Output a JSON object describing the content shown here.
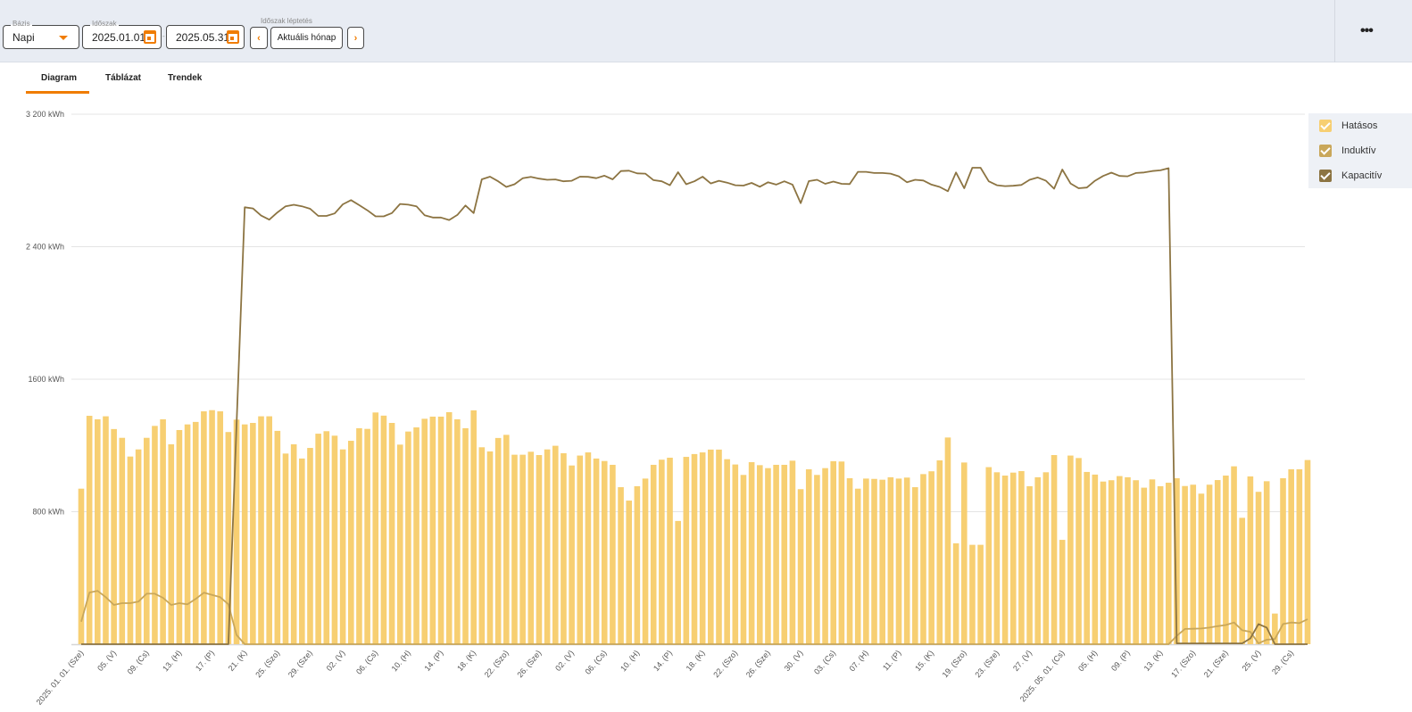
{
  "header": {
    "basis_label": "Bázis",
    "basis_value": "Napi",
    "period_label": "Időszak",
    "date_from": "2025.01.01",
    "date_separator": "-",
    "date_to": "2025.05.31",
    "step_label": "Időszak léptetés",
    "prev_icon": "chevron-left-icon",
    "prev_glyph": "‹",
    "current_month": "Aktuális hónap",
    "next_icon": "chevron-right-icon",
    "next_glyph": "›",
    "more_glyph": "•••",
    "accent_color": "#f07c00"
  },
  "tabs": [
    {
      "label": "Diagram",
      "active": true
    },
    {
      "label": "Táblázat",
      "active": false
    },
    {
      "label": "Trendek",
      "active": false
    }
  ],
  "legend": [
    {
      "label": "Hatásos",
      "color": "#f7cf72",
      "checked": true
    },
    {
      "label": "Induktív",
      "color": "#c9a75a",
      "checked": true
    },
    {
      "label": "Kapacitív",
      "color": "#8c7442",
      "checked": true
    }
  ],
  "chart_data": {
    "type": "bar+line",
    "unit": "kWh",
    "ylim": [
      0,
      3200
    ],
    "yticks": [
      800,
      1600,
      2400,
      3200
    ],
    "ytick_labels": [
      "800 kWh",
      "1600 kWh",
      "2 400 kWh",
      "3 200 kWh"
    ],
    "grid": true,
    "legend_position": "right",
    "dates": [
      "2025-01-01",
      "2025-01-02",
      "2025-01-03",
      "2025-01-04",
      "2025-01-05",
      "2025-01-06",
      "2025-01-07",
      "2025-01-08",
      "2025-01-09",
      "2025-01-10",
      "2025-01-11",
      "2025-01-12",
      "2025-01-13",
      "2025-01-14",
      "2025-01-15",
      "2025-01-16",
      "2025-01-17",
      "2025-01-18",
      "2025-01-19",
      "2025-01-20",
      "2025-01-21",
      "2025-01-22",
      "2025-01-23",
      "2025-01-24",
      "2025-01-25",
      "2025-01-26",
      "2025-01-27",
      "2025-01-28",
      "2025-01-29",
      "2025-01-30",
      "2025-01-31",
      "2025-02-01",
      "2025-02-02",
      "2025-02-03",
      "2025-02-04",
      "2025-02-05",
      "2025-02-06",
      "2025-02-07",
      "2025-02-08",
      "2025-02-09",
      "2025-02-10",
      "2025-02-11",
      "2025-02-12",
      "2025-02-13",
      "2025-02-14",
      "2025-02-15",
      "2025-02-16",
      "2025-02-17",
      "2025-02-18",
      "2025-02-19",
      "2025-02-20",
      "2025-02-21",
      "2025-02-22",
      "2025-02-23",
      "2025-02-24",
      "2025-02-25",
      "2025-02-26",
      "2025-02-27",
      "2025-02-28",
      "2025-03-01",
      "2025-03-02",
      "2025-03-03",
      "2025-03-04",
      "2025-03-05",
      "2025-03-06",
      "2025-03-07",
      "2025-03-08",
      "2025-03-09",
      "2025-03-10",
      "2025-03-11",
      "2025-03-12",
      "2025-03-13",
      "2025-03-14",
      "2025-03-15",
      "2025-03-16",
      "2025-03-17",
      "2025-03-18",
      "2025-03-19",
      "2025-03-20",
      "2025-03-21",
      "2025-03-22",
      "2025-03-23",
      "2025-03-24",
      "2025-03-25",
      "2025-03-26",
      "2025-03-27",
      "2025-03-28",
      "2025-03-29",
      "2025-03-30",
      "2025-03-31",
      "2025-04-01",
      "2025-04-02",
      "2025-04-03",
      "2025-04-04",
      "2025-04-05",
      "2025-04-06",
      "2025-04-07",
      "2025-04-08",
      "2025-04-09",
      "2025-04-10",
      "2025-04-11",
      "2025-04-12",
      "2025-04-13",
      "2025-04-14",
      "2025-04-15",
      "2025-04-16",
      "2025-04-17",
      "2025-04-18",
      "2025-04-19",
      "2025-04-20",
      "2025-04-21",
      "2025-04-22",
      "2025-04-23",
      "2025-04-24",
      "2025-04-25",
      "2025-04-26",
      "2025-04-27",
      "2025-04-28",
      "2025-04-29",
      "2025-04-30",
      "2025-05-01",
      "2025-05-02",
      "2025-05-03",
      "2025-05-04",
      "2025-05-05",
      "2025-05-06",
      "2025-05-07",
      "2025-05-08",
      "2025-05-09",
      "2025-05-10",
      "2025-05-11",
      "2025-05-12",
      "2025-05-13",
      "2025-05-14",
      "2025-05-15",
      "2025-05-16",
      "2025-05-17",
      "2025-05-18",
      "2025-05-19",
      "2025-05-20",
      "2025-05-21",
      "2025-05-22",
      "2025-05-23",
      "2025-05-24",
      "2025-05-25",
      "2025-05-26",
      "2025-05-27",
      "2025-05-28",
      "2025-05-29",
      "2025-05-30",
      "2025-05-31"
    ],
    "xtick_labels": [
      {
        "date": "2025-01-01",
        "label": "2025. 01. 01. (Sze)"
      },
      {
        "date": "2025-01-05",
        "label": "05. (V)"
      },
      {
        "date": "2025-01-09",
        "label": "09. (Cs)"
      },
      {
        "date": "2025-01-13",
        "label": "13. (H)"
      },
      {
        "date": "2025-01-17",
        "label": "17. (P)"
      },
      {
        "date": "2025-01-21",
        "label": "21. (K)"
      },
      {
        "date": "2025-01-25",
        "label": "25. (Szo)"
      },
      {
        "date": "2025-01-29",
        "label": "29. (Sze)"
      },
      {
        "date": "2025-02-02",
        "label": "02. (V)"
      },
      {
        "date": "2025-02-06",
        "label": "06. (Cs)"
      },
      {
        "date": "2025-02-10",
        "label": "10. (H)"
      },
      {
        "date": "2025-02-14",
        "label": "14. (P)"
      },
      {
        "date": "2025-02-18",
        "label": "18. (K)"
      },
      {
        "date": "2025-02-22",
        "label": "22. (Szo)"
      },
      {
        "date": "2025-02-26",
        "label": "26. (Sze)"
      },
      {
        "date": "2025-03-02",
        "label": "02. (V)"
      },
      {
        "date": "2025-03-06",
        "label": "06. (Cs)"
      },
      {
        "date": "2025-03-10",
        "label": "10. (H)"
      },
      {
        "date": "2025-03-14",
        "label": "14. (P)"
      },
      {
        "date": "2025-03-18",
        "label": "18. (K)"
      },
      {
        "date": "2025-03-22",
        "label": "22. (Szo)"
      },
      {
        "date": "2025-03-26",
        "label": "26. (Sze)"
      },
      {
        "date": "2025-03-30",
        "label": "30. (V)"
      },
      {
        "date": "2025-04-03",
        "label": "03. (Cs)"
      },
      {
        "date": "2025-04-07",
        "label": "07. (H)"
      },
      {
        "date": "2025-04-11",
        "label": "11. (P)"
      },
      {
        "date": "2025-04-15",
        "label": "15. (K)"
      },
      {
        "date": "2025-04-19",
        "label": "19. (Szo)"
      },
      {
        "date": "2025-04-23",
        "label": "23. (Sze)"
      },
      {
        "date": "2025-04-27",
        "label": "27. (V)"
      },
      {
        "date": "2025-05-01",
        "label": "2025. 05. 01. (Cs)"
      },
      {
        "date": "2025-05-05",
        "label": "05. (H)"
      },
      {
        "date": "2025-05-09",
        "label": "09. (P)"
      },
      {
        "date": "2025-05-13",
        "label": "13. (K)"
      },
      {
        "date": "2025-05-17",
        "label": "17. (Szo)"
      },
      {
        "date": "2025-05-21",
        "label": "21. (Sze)"
      },
      {
        "date": "2025-05-25",
        "label": "25. (V)"
      },
      {
        "date": "2025-05-29",
        "label": "29. (Cs)"
      }
    ],
    "series": [
      {
        "name": "Hatásos",
        "kind": "bar",
        "color": "#f7cf72",
        "values": [
          939,
          1379,
          1358,
          1376,
          1299,
          1246,
          1133,
          1176,
          1246,
          1318,
          1358,
          1207,
          1293,
          1327,
          1342,
          1406,
          1413,
          1406,
          1281,
          1356,
          1327,
          1336,
          1376,
          1376,
          1288,
          1151,
          1207,
          1121,
          1185,
          1271,
          1286,
          1259,
          1176,
          1228,
          1304,
          1300,
          1399,
          1380,
          1336,
          1205,
          1284,
          1309,
          1361,
          1374,
          1374,
          1401,
          1358,
          1304,
          1412,
          1189,
          1164,
          1245,
          1264,
          1144,
          1144,
          1162,
          1142,
          1176,
          1198,
          1153,
          1079,
          1139,
          1158,
          1121,
          1106,
          1083,
          948,
          867,
          954,
          1000,
          1083,
          1114,
          1126,
          744,
          1131,
          1148,
          1158,
          1175,
          1175,
          1117,
          1085,
          1022,
          1099,
          1081,
          1063,
          1083,
          1083,
          1108,
          936,
          1056,
          1022,
          1063,
          1105,
          1103,
          1002,
          939,
          1000,
          998,
          993,
          1008,
          1000,
          1006,
          948,
          1027,
          1044,
          1110,
          1248,
          609,
          1097,
          600,
          600,
          1069,
          1038,
          1018,
          1036,
          1045,
          954,
          1008,
          1038,
          1142,
          630,
          1139,
          1124,
          1040,
          1024,
          982,
          990,
          1015,
          1008,
          990,
          945,
          995,
          954,
          975,
          1002,
          955,
          963,
          909,
          963,
          991,
          1018,
          1074,
          763,
          1013,
          920,
          984,
          185,
          1002,
          1056,
          1056,
          1112
        ]
      },
      {
        "name": "Induktív",
        "kind": "line",
        "color": "#c9a75a",
        "values": [
          136,
          312,
          322,
          284,
          237,
          248,
          248,
          257,
          305,
          305,
          280,
          237,
          248,
          241,
          273,
          311,
          298,
          284,
          241,
          56,
          0,
          0,
          0,
          0,
          0,
          0,
          0,
          0,
          0,
          0,
          0,
          0,
          0,
          0,
          0,
          0,
          0,
          0,
          0,
          0,
          0,
          0,
          0,
          0,
          0,
          0,
          0,
          0,
          0,
          0,
          0,
          0,
          0,
          0,
          0,
          0,
          0,
          0,
          0,
          0,
          0,
          0,
          0,
          0,
          0,
          0,
          0,
          0,
          0,
          0,
          0,
          0,
          0,
          0,
          0,
          0,
          0,
          0,
          0,
          0,
          0,
          0,
          0,
          0,
          0,
          0,
          0,
          0,
          0,
          0,
          0,
          0,
          0,
          0,
          0,
          0,
          0,
          0,
          0,
          0,
          0,
          0,
          0,
          0,
          0,
          0,
          0,
          0,
          0,
          0,
          0,
          0,
          0,
          0,
          0,
          0,
          0,
          0,
          0,
          0,
          0,
          0,
          0,
          0,
          0,
          0,
          0,
          0,
          0,
          0,
          0,
          0,
          0,
          0,
          50,
          92,
          93,
          95,
          100,
          109,
          116,
          131,
          84,
          75,
          5,
          27,
          31,
          122,
          131,
          127,
          151
        ]
      },
      {
        "name": "Kapacitív",
        "kind": "line",
        "color": "#8c7442",
        "values": [
          0,
          0,
          0,
          0,
          0,
          0,
          0,
          0,
          0,
          0,
          0,
          0,
          0,
          0,
          0,
          0,
          0,
          0,
          0,
          1320,
          2638,
          2631,
          2588,
          2563,
          2607,
          2644,
          2653,
          2644,
          2629,
          2586,
          2586,
          2601,
          2656,
          2681,
          2651,
          2620,
          2583,
          2583,
          2603,
          2658,
          2654,
          2644,
          2590,
          2576,
          2576,
          2561,
          2592,
          2649,
          2603,
          2807,
          2823,
          2795,
          2761,
          2777,
          2813,
          2822,
          2811,
          2804,
          2806,
          2795,
          2798,
          2823,
          2822,
          2814,
          2829,
          2807,
          2857,
          2859,
          2843,
          2841,
          2802,
          2795,
          2771,
          2850,
          2777,
          2795,
          2823,
          2782,
          2798,
          2787,
          2771,
          2769,
          2785,
          2762,
          2789,
          2775,
          2795,
          2775,
          2663,
          2796,
          2804,
          2780,
          2793,
          2780,
          2778,
          2852,
          2852,
          2845,
          2845,
          2841,
          2825,
          2789,
          2804,
          2800,
          2775,
          2761,
          2735,
          2848,
          2753,
          2877,
          2877,
          2795,
          2771,
          2766,
          2768,
          2773,
          2804,
          2818,
          2798,
          2750,
          2866,
          2782,
          2753,
          2757,
          2798,
          2827,
          2847,
          2827,
          2825,
          2845,
          2848,
          2857,
          2861,
          2874,
          5,
          5,
          5,
          5,
          5,
          5,
          5,
          5,
          5,
          35,
          122,
          100,
          0,
          0,
          0,
          0,
          0
        ]
      }
    ]
  }
}
